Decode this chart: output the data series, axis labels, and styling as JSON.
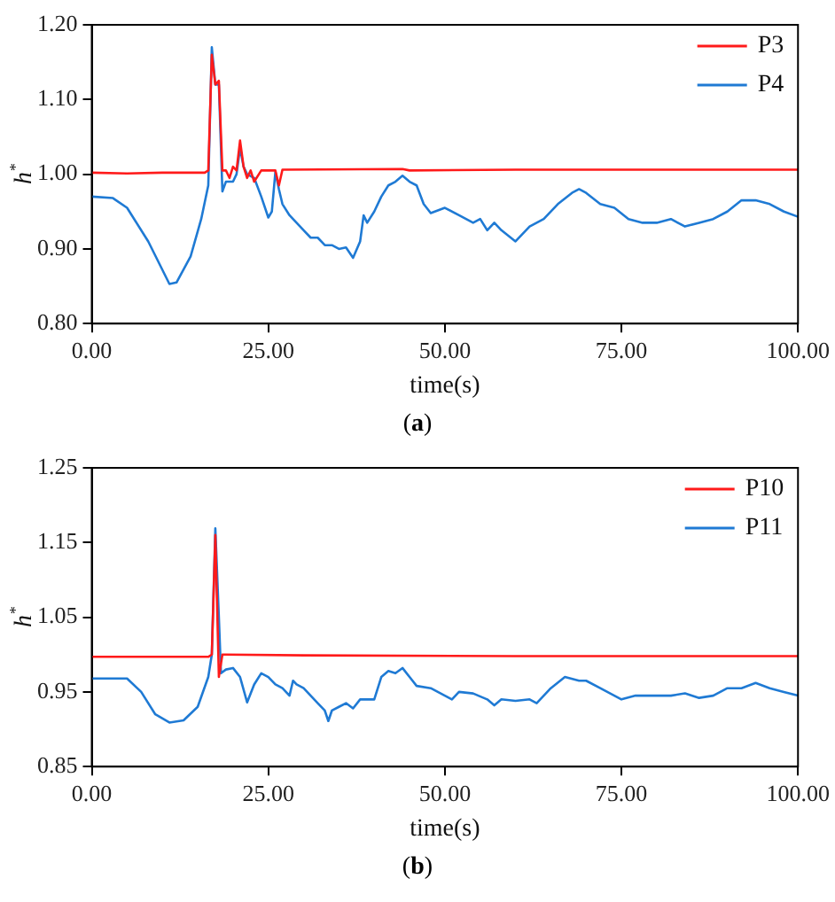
{
  "chart_data": [
    {
      "type": "line",
      "xlabel": "time(s)",
      "ylabel": "h$^{*}$",
      "annotations": [
        "(a)"
      ],
      "legend": "top right",
      "grid": false,
      "marker": "none",
      "line_style": "solid",
      "xlim": [
        0,
        100
      ],
      "xticks": [
        {
          "value": 0,
          "label": "0.00"
        },
        {
          "value": 25,
          "label": "25.00"
        },
        {
          "value": 50,
          "label": "50.00"
        },
        {
          "value": 75,
          "label": "75.00"
        },
        {
          "value": 100,
          "label": "100.00"
        }
      ],
      "ylim": [
        0.8,
        1.2
      ],
      "yticks": [
        {
          "value": 0.8,
          "label": "0.80"
        },
        {
          "value": 0.9,
          "label": "0.90"
        },
        {
          "value": 1.0,
          "label": "1.00"
        },
        {
          "value": 1.1,
          "label": "1.10"
        },
        {
          "value": 1.2,
          "label": "1.20"
        }
      ],
      "series": [
        {
          "name": "P3",
          "color": "#ff1a1a",
          "x": [
            0,
            5,
            10,
            16,
            16.5,
            17,
            17.5,
            18,
            18.5,
            19,
            19.5,
            20,
            20.5,
            21,
            21.5,
            22,
            22.5,
            23,
            24,
            26,
            26.5,
            27,
            44,
            45,
            60,
            80,
            100
          ],
          "values": [
            1.002,
            1.001,
            1.002,
            1.002,
            1.005,
            1.16,
            1.12,
            1.125,
            1.005,
            1.005,
            0.995,
            1.01,
            1.005,
            1.045,
            1.01,
            0.995,
            1.005,
            0.99,
            1.005,
            1.005,
            0.985,
            1.006,
            1.007,
            1.005,
            1.006,
            1.006,
            1.006
          ]
        },
        {
          "name": "P4",
          "color": "#1f7ad4",
          "x": [
            0,
            3,
            5,
            8,
            11,
            12,
            14,
            15.5,
            16.5,
            17,
            17.5,
            18,
            18.5,
            19,
            20,
            20.5,
            21,
            21.5,
            22,
            23,
            24,
            25,
            25.5,
            26,
            26.5,
            27,
            28,
            29,
            30,
            31,
            32,
            33,
            34,
            35,
            36,
            37,
            38,
            38.5,
            39,
            40,
            41,
            42,
            43,
            44,
            45,
            46,
            47,
            48,
            50,
            52,
            54,
            55,
            56,
            57,
            58,
            60,
            62,
            64,
            66,
            68,
            69,
            70,
            72,
            74,
            76,
            78,
            80,
            82,
            84,
            86,
            88,
            90,
            92,
            94,
            96,
            98,
            100
          ],
          "values": [
            0.97,
            0.968,
            0.955,
            0.91,
            0.853,
            0.855,
            0.89,
            0.94,
            0.985,
            1.17,
            1.12,
            1.12,
            0.977,
            0.99,
            0.99,
            1.0,
            1.035,
            1.01,
            1.0,
            0.995,
            0.97,
            0.942,
            0.95,
            1.003,
            0.98,
            0.96,
            0.945,
            0.935,
            0.925,
            0.915,
            0.915,
            0.905,
            0.905,
            0.9,
            0.902,
            0.888,
            0.91,
            0.945,
            0.935,
            0.95,
            0.97,
            0.985,
            0.99,
            0.998,
            0.99,
            0.985,
            0.96,
            0.948,
            0.955,
            0.945,
            0.935,
            0.94,
            0.925,
            0.935,
            0.925,
            0.91,
            0.93,
            0.94,
            0.96,
            0.975,
            0.98,
            0.975,
            0.96,
            0.955,
            0.94,
            0.935,
            0.935,
            0.94,
            0.93,
            0.935,
            0.94,
            0.95,
            0.965,
            0.965,
            0.96,
            0.95,
            0.943
          ]
        }
      ]
    },
    {
      "type": "line",
      "xlabel": "time(s)",
      "ylabel": "h$^{*}$",
      "annotations": [
        "(b)"
      ],
      "legend": "top right",
      "grid": false,
      "marker": "none",
      "line_style": "solid",
      "xlim": [
        0,
        100
      ],
      "xticks": [
        {
          "value": 0,
          "label": "0.00"
        },
        {
          "value": 25,
          "label": "25.00"
        },
        {
          "value": 50,
          "label": "50.00"
        },
        {
          "value": 75,
          "label": "75.00"
        },
        {
          "value": 100,
          "label": "100.00"
        }
      ],
      "ylim": [
        0.85,
        1.25
      ],
      "yticks": [
        {
          "value": 0.85,
          "label": "0.85"
        },
        {
          "value": 0.95,
          "label": "0.95"
        },
        {
          "value": 1.05,
          "label": "1.05"
        },
        {
          "value": 1.15,
          "label": "1.15"
        },
        {
          "value": 1.25,
          "label": "1.25"
        }
      ],
      "series": [
        {
          "name": "P10",
          "color": "#ff1a1a",
          "x": [
            0,
            8,
            16.5,
            17,
            17.5,
            18,
            18.5,
            30,
            60,
            100
          ],
          "values": [
            0.997,
            0.997,
            0.997,
            1.0,
            1.16,
            0.97,
            1.0,
            0.999,
            0.998,
            0.998
          ]
        },
        {
          "name": "P11",
          "color": "#1f7ad4",
          "x": [
            0,
            5,
            7,
            9,
            11,
            13,
            15,
            16.5,
            17,
            17.5,
            18,
            18.3,
            19,
            20,
            21,
            22,
            23,
            24,
            25,
            26,
            27,
            28,
            28.5,
            29,
            30,
            31,
            32,
            33,
            33.5,
            34,
            35,
            36,
            37,
            38,
            40,
            41,
            42,
            43,
            44,
            45,
            46,
            48,
            50,
            51,
            52,
            54,
            56,
            57,
            58,
            60,
            62,
            63,
            65,
            67,
            69,
            70,
            72,
            74,
            75,
            77,
            80,
            82,
            84,
            86,
            88,
            90,
            92,
            94,
            96,
            98,
            100
          ],
          "values": [
            0.968,
            0.968,
            0.95,
            0.92,
            0.909,
            0.912,
            0.93,
            0.97,
            1.0,
            1.169,
            1.05,
            0.975,
            0.98,
            0.982,
            0.97,
            0.936,
            0.96,
            0.975,
            0.97,
            0.96,
            0.955,
            0.945,
            0.965,
            0.96,
            0.955,
            0.945,
            0.935,
            0.925,
            0.911,
            0.925,
            0.93,
            0.935,
            0.928,
            0.94,
            0.94,
            0.97,
            0.978,
            0.975,
            0.982,
            0.97,
            0.958,
            0.955,
            0.945,
            0.94,
            0.95,
            0.948,
            0.94,
            0.932,
            0.94,
            0.938,
            0.94,
            0.935,
            0.955,
            0.97,
            0.965,
            0.965,
            0.955,
            0.945,
            0.94,
            0.945,
            0.945,
            0.945,
            0.948,
            0.942,
            0.945,
            0.955,
            0.955,
            0.962,
            0.955,
            0.95,
            0.945
          ]
        }
      ]
    }
  ]
}
